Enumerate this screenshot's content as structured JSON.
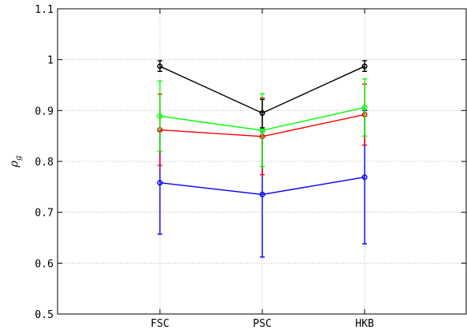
{
  "chart_data": {
    "type": "line",
    "title": "",
    "xlabel": "",
    "ylabel_symbol": "ρ",
    "ylabel_subscript": "g",
    "categories": [
      "FSC",
      "PSC",
      "HKB"
    ],
    "ylim": [
      0.5,
      1.1
    ],
    "yticks": [
      "0.5",
      "0.6",
      "0.7",
      "0.8",
      "0.9",
      "1",
      "1.1"
    ],
    "grid": true,
    "legend": "none",
    "series": [
      {
        "color": "#0000ff",
        "values": [
          0.758,
          0.735,
          0.769
        ],
        "err_low": [
          0.657,
          0.612,
          0.638
        ],
        "err_high": [
          0.86,
          0.858,
          0.9
        ]
      },
      {
        "color": "#ff0000",
        "values": [
          0.862,
          0.849,
          0.892
        ],
        "err_low": [
          0.792,
          0.774,
          0.832
        ],
        "err_high": [
          0.932,
          0.925,
          0.952
        ]
      },
      {
        "color": "#00ff00",
        "values": [
          0.889,
          0.861,
          0.906
        ],
        "err_low": [
          0.82,
          0.79,
          0.85
        ],
        "err_high": [
          0.958,
          0.933,
          0.962
        ]
      },
      {
        "color": "#000000",
        "values": [
          0.987,
          0.895,
          0.987
        ],
        "err_low": [
          0.977,
          0.866,
          0.977
        ],
        "err_high": [
          0.998,
          0.922,
          0.998
        ]
      }
    ]
  }
}
